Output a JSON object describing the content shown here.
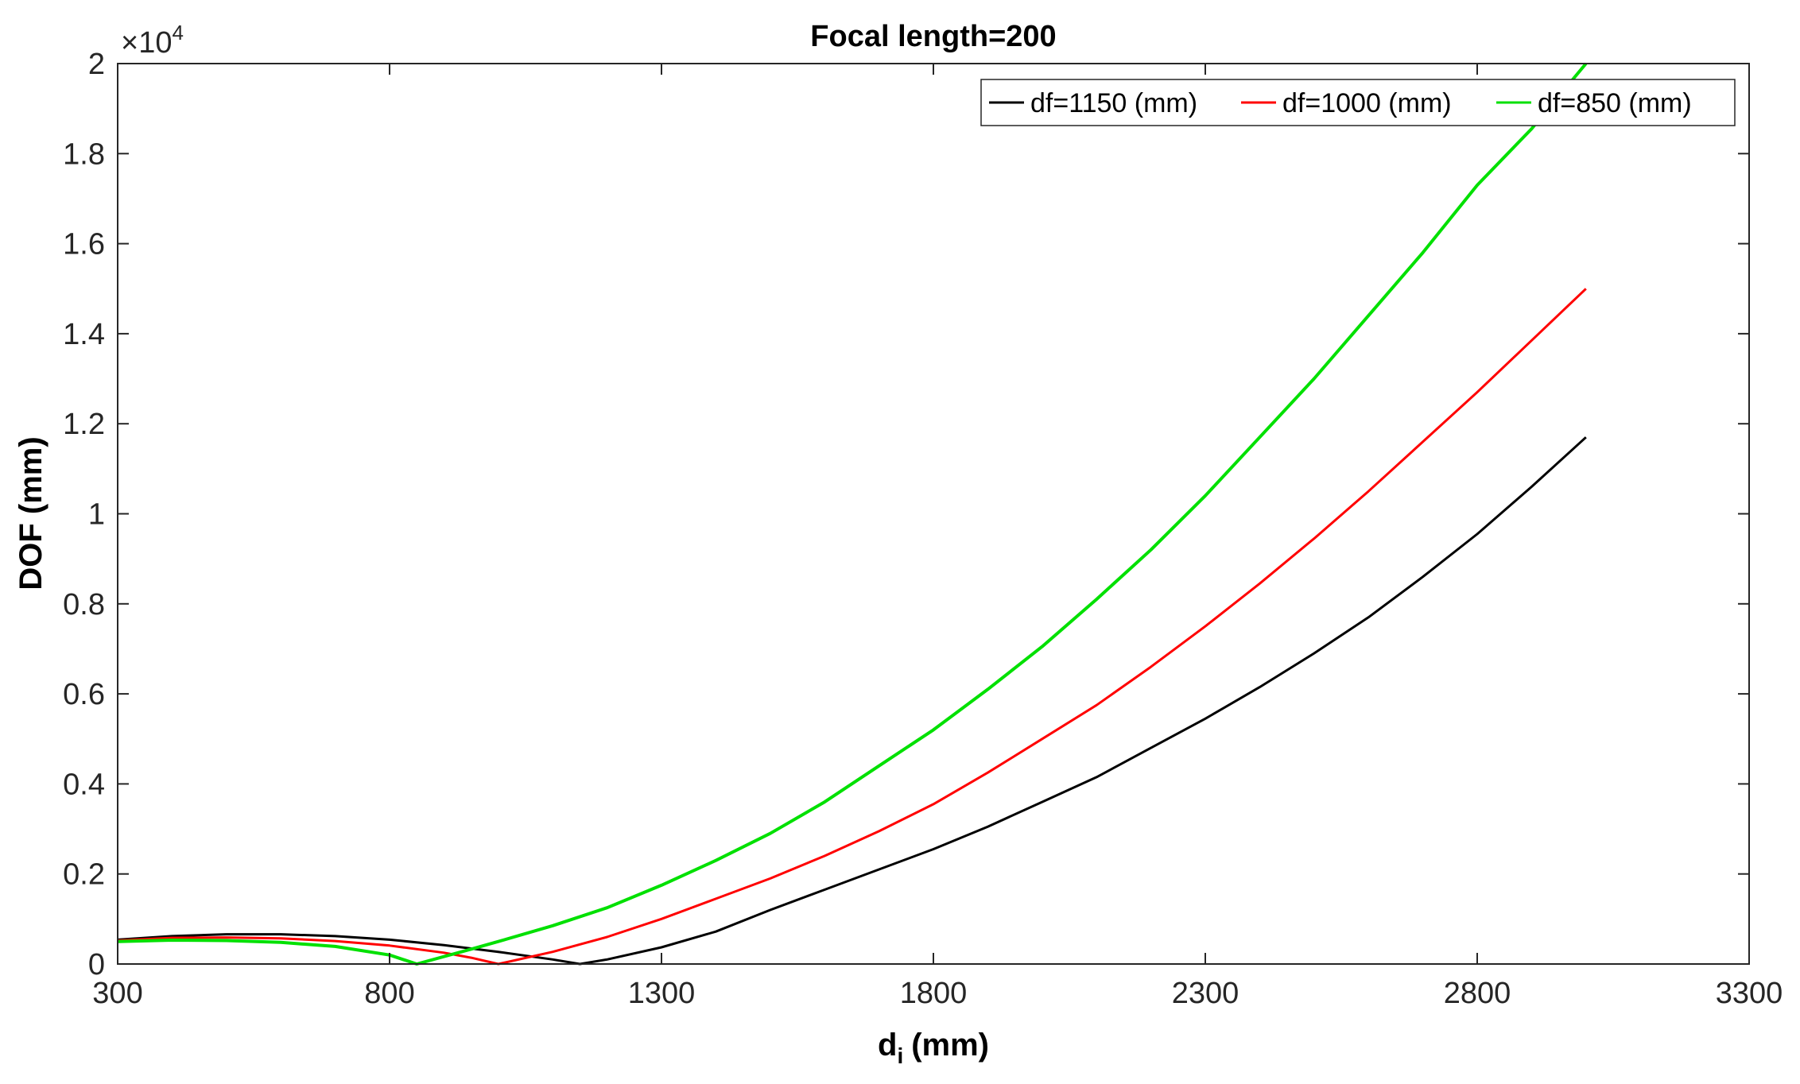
{
  "chart_data": {
    "type": "line",
    "title": "Focal length=200",
    "xlabel": "(mm)",
    "xlabel_main": "d",
    "xlabel_sub": "i",
    "ylabel": "DOF (mm)",
    "y_exponent_base": "×10",
    "y_exponent_power": "4",
    "xlim": [
      300,
      3300
    ],
    "ylim": [
      0,
      2
    ],
    "xticks": [
      300,
      800,
      1300,
      1800,
      2300,
      2800,
      3300
    ],
    "xtick_labels": [
      "300",
      "800",
      "1300",
      "1800",
      "2300",
      "2800",
      "3300"
    ],
    "yticks": [
      0,
      0.2,
      0.4,
      0.6,
      0.8,
      1,
      1.2,
      1.4,
      1.6,
      1.8,
      2
    ],
    "ytick_labels": [
      "0",
      "0.2",
      "0.4",
      "0.6",
      "0.8",
      "1",
      "1.2",
      "1.4",
      "1.6",
      "1.8",
      "2"
    ],
    "grid": false,
    "legend_position": "top-right",
    "series": [
      {
        "name": "df=1150 (mm)",
        "color": "#000000",
        "points": [
          [
            300,
            0.054
          ],
          [
            400,
            0.062
          ],
          [
            500,
            0.066
          ],
          [
            600,
            0.066
          ],
          [
            700,
            0.062
          ],
          [
            800,
            0.054
          ],
          [
            900,
            0.042
          ],
          [
            1000,
            0.027
          ],
          [
            1100,
            0.01
          ],
          [
            1150,
            0.0
          ],
          [
            1200,
            0.01
          ],
          [
            1300,
            0.037
          ],
          [
            1400,
            0.072
          ],
          [
            1500,
            0.12
          ],
          [
            1600,
            0.165
          ],
          [
            1700,
            0.21
          ],
          [
            1800,
            0.255
          ],
          [
            1900,
            0.305
          ],
          [
            2000,
            0.36
          ],
          [
            2100,
            0.415
          ],
          [
            2200,
            0.48
          ],
          [
            2300,
            0.545
          ],
          [
            2400,
            0.615
          ],
          [
            2500,
            0.69
          ],
          [
            2600,
            0.77
          ],
          [
            2700,
            0.86
          ],
          [
            2800,
            0.955
          ],
          [
            2900,
            1.06
          ],
          [
            3000,
            1.17
          ]
        ]
      },
      {
        "name": "df=1000 (mm)",
        "color": "#ff0000",
        "points": [
          [
            300,
            0.052
          ],
          [
            400,
            0.058
          ],
          [
            500,
            0.059
          ],
          [
            600,
            0.057
          ],
          [
            700,
            0.051
          ],
          [
            800,
            0.041
          ],
          [
            900,
            0.025
          ],
          [
            950,
            0.014
          ],
          [
            1000,
            0.0
          ],
          [
            1100,
            0.027
          ],
          [
            1200,
            0.06
          ],
          [
            1300,
            0.1
          ],
          [
            1400,
            0.145
          ],
          [
            1500,
            0.19
          ],
          [
            1600,
            0.24
          ],
          [
            1700,
            0.295
          ],
          [
            1800,
            0.355
          ],
          [
            1900,
            0.425
          ],
          [
            2000,
            0.5
          ],
          [
            2100,
            0.575
          ],
          [
            2200,
            0.66
          ],
          [
            2300,
            0.75
          ],
          [
            2400,
            0.845
          ],
          [
            2500,
            0.945
          ],
          [
            2600,
            1.05
          ],
          [
            2700,
            1.16
          ],
          [
            2800,
            1.27
          ],
          [
            2900,
            1.385
          ],
          [
            3000,
            1.5
          ]
        ]
      },
      {
        "name": "df=850 (mm)",
        "color": "#00e000",
        "points": [
          [
            300,
            0.05
          ],
          [
            400,
            0.053
          ],
          [
            500,
            0.052
          ],
          [
            600,
            0.048
          ],
          [
            700,
            0.039
          ],
          [
            800,
            0.02
          ],
          [
            850,
            0.0
          ],
          [
            950,
            0.033
          ],
          [
            1000,
            0.05
          ],
          [
            1100,
            0.085
          ],
          [
            1200,
            0.125
          ],
          [
            1300,
            0.175
          ],
          [
            1400,
            0.23
          ],
          [
            1500,
            0.29
          ],
          [
            1600,
            0.36
          ],
          [
            1700,
            0.44
          ],
          [
            1800,
            0.52
          ],
          [
            1900,
            0.61
          ],
          [
            2000,
            0.705
          ],
          [
            2100,
            0.81
          ],
          [
            2200,
            0.92
          ],
          [
            2300,
            1.04
          ],
          [
            2400,
            1.17
          ],
          [
            2500,
            1.3
          ],
          [
            2600,
            1.44
          ],
          [
            2700,
            1.58
          ],
          [
            2800,
            1.73
          ],
          [
            2900,
            1.855
          ],
          [
            3000,
            2.0
          ]
        ]
      }
    ]
  }
}
